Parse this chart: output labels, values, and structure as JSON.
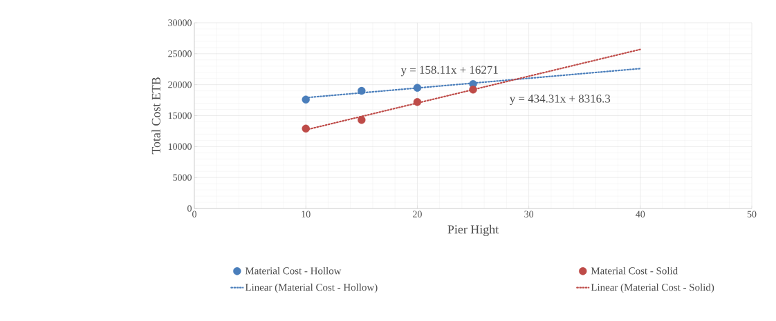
{
  "chart_data": {
    "type": "scatter",
    "xlabel": "Pier Hight",
    "ylabel": "Total Cost ETB",
    "xlim": [
      0,
      50
    ],
    "xticks": [
      0,
      10,
      20,
      30,
      40,
      50
    ],
    "ylim": [
      0,
      30000
    ],
    "yticks": [
      0,
      5000,
      10000,
      15000,
      20000,
      25000,
      30000
    ],
    "grid": true,
    "legend": "bottom",
    "marker": "circle",
    "series": [
      {
        "name": "Material Cost - Hollow",
        "color": "#4a7ebb",
        "x": [
          10,
          15,
          20,
          25
        ],
        "values": [
          17600,
          19000,
          19500,
          20100
        ]
      },
      {
        "name": "Material Cost - Solid",
        "color": "#be4b48",
        "x": [
          10,
          15,
          20,
          25
        ],
        "values": [
          12900,
          14300,
          17200,
          19200
        ]
      },
      {
        "name": "Linear (Material Cost - Hollow)",
        "type": "line",
        "line_style": "dotted",
        "marker": "none",
        "color": "#4a7ebb",
        "x": [
          10,
          40
        ],
        "values": [
          17900,
          22600
        ]
      },
      {
        "name": "Linear (Material Cost - Solid)",
        "type": "line",
        "line_style": "dotted",
        "marker": "none",
        "color": "#be4b48",
        "x": [
          10,
          40
        ],
        "values": [
          12700,
          25700
        ]
      }
    ],
    "annotations": [
      "y = 158.11x + 16271",
      "y = 434.31x + 8316.3"
    ]
  }
}
